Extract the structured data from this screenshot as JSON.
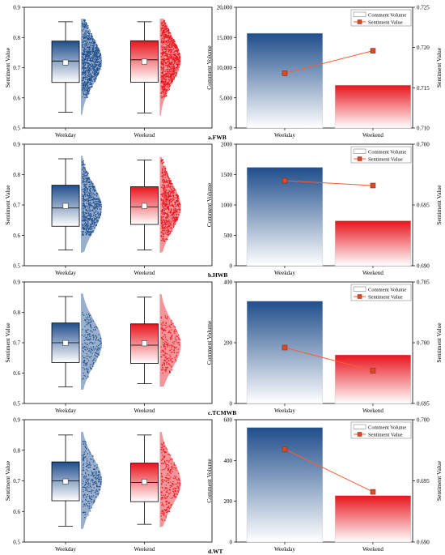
{
  "colors": {
    "weekday": "#1f4e8c",
    "weekend": "#e8141c",
    "line": "#ff5a2e",
    "marker": "#d94a2a",
    "text": "#000000"
  },
  "chart_data": [
    {
      "type": "scatter",
      "variant": "box-raincloud",
      "panel": "a",
      "xlabel": "",
      "ylabel": "Sentiment Value",
      "ylim": [
        0.5,
        0.9
      ],
      "yticks": [
        "0.5",
        "0.6",
        "0.7",
        "0.8",
        "0.9"
      ],
      "categories": [
        "Weekday",
        "Weekend"
      ],
      "boxes": [
        {
          "name": "Weekday",
          "whisker_low": 0.552,
          "q1": 0.651,
          "median": 0.722,
          "mean": 0.717,
          "q3": 0.788,
          "whisker_high": 0.852,
          "points_low": 0.6,
          "points_high": 0.858
        },
        {
          "name": "Weekend",
          "whisker_low": 0.55,
          "q1": 0.652,
          "median": 0.726,
          "mean": 0.72,
          "q3": 0.789,
          "whisker_high": 0.852,
          "points_low": 0.6,
          "points_high": 0.858
        }
      ]
    },
    {
      "type": "bar",
      "variant": "bar-line-dual-axis",
      "panel": "a",
      "label": "a.FWB",
      "categories": [
        "Weekday",
        "Weekend"
      ],
      "ylabel": "Comment Volume",
      "y2label": "Sentiment Value",
      "ylim": [
        0,
        20000
      ],
      "yticks": [
        "0",
        "5,000",
        "10,000",
        "15,000",
        "20,000"
      ],
      "y2lim": [
        0.71,
        0.725
      ],
      "y2ticks": [
        "0.710",
        "0.715",
        "0.720",
        "0.725"
      ],
      "series": [
        {
          "name": "Comment Volume",
          "values": [
            15700,
            7100
          ]
        },
        {
          "name": "Sentiment Value",
          "values": [
            0.7168,
            0.7196
          ]
        }
      ],
      "legend": "top-right"
    },
    {
      "type": "scatter",
      "variant": "box-raincloud",
      "panel": "b",
      "xlabel": "",
      "ylabel": "Sentiment Value",
      "ylim": [
        0.5,
        0.9
      ],
      "yticks": [
        "0.5",
        "0.6",
        "0.7",
        "0.8",
        "0.9"
      ],
      "categories": [
        "Weekday",
        "Weekend"
      ],
      "boxes": [
        {
          "name": "Weekday",
          "whisker_low": 0.552,
          "q1": 0.63,
          "median": 0.69,
          "mean": 0.697,
          "q3": 0.765,
          "whisker_high": 0.852,
          "points_low": 0.6,
          "points_high": 0.858
        },
        {
          "name": "Weekend",
          "whisker_low": 0.552,
          "q1": 0.636,
          "median": 0.694,
          "mean": 0.697,
          "q3": 0.76,
          "whisker_high": 0.848,
          "points_low": 0.58,
          "points_high": 0.852
        }
      ]
    },
    {
      "type": "bar",
      "variant": "bar-line-dual-axis",
      "panel": "b",
      "label": "b.HWB",
      "categories": [
        "Weekday",
        "Weekend"
      ],
      "ylabel": "Comment Volume",
      "y2label": "Sentiment Value",
      "ylim": [
        0,
        2000
      ],
      "yticks": [
        "0",
        "500",
        "1000",
        "1500",
        "2000"
      ],
      "y2lim": [
        0.69,
        0.7
      ],
      "y2ticks": [
        "0.690",
        "0.695",
        "0.700"
      ],
      "series": [
        {
          "name": "Comment Volume",
          "values": [
            1620,
            740
          ]
        },
        {
          "name": "Sentiment Value",
          "values": [
            0.697,
            0.6966
          ]
        }
      ],
      "legend": "top-right"
    },
    {
      "type": "scatter",
      "variant": "box-raincloud",
      "panel": "c",
      "xlabel": "",
      "ylabel": "Sentiment Value",
      "ylim": [
        0.5,
        0.9
      ],
      "yticks": [
        "0.5",
        "0.6",
        "0.7",
        "0.8",
        "0.9"
      ],
      "categories": [
        "Weekday",
        "Weekend"
      ],
      "boxes": [
        {
          "name": "Weekday",
          "whisker_low": 0.555,
          "q1": 0.635,
          "median": 0.7,
          "mean": 0.699,
          "q3": 0.765,
          "whisker_high": 0.852,
          "points_low": 0.58,
          "points_high": 0.8
        },
        {
          "name": "Weekend",
          "whisker_low": 0.565,
          "q1": 0.632,
          "median": 0.692,
          "mean": 0.698,
          "q3": 0.762,
          "whisker_high": 0.85,
          "points_low": 0.6,
          "points_high": 0.79
        }
      ]
    },
    {
      "type": "bar",
      "variant": "bar-line-dual-axis",
      "panel": "c",
      "label": "c.TCMWB",
      "categories": [
        "Weekday",
        "Weekend"
      ],
      "ylabel": "Comment Volume",
      "y2label": "Sentiment Value",
      "ylim": [
        0,
        400
      ],
      "yticks": [
        "0",
        "200",
        "400"
      ],
      "y2lim": [
        0.695,
        0.705
      ],
      "y2ticks": [
        "0.695",
        "0.700",
        "0.705"
      ],
      "series": [
        {
          "name": "Comment Volume",
          "values": [
            337,
            160
          ]
        },
        {
          "name": "Sentiment Value",
          "values": [
            0.6996,
            0.6977
          ]
        }
      ],
      "legend": "top-right"
    },
    {
      "type": "scatter",
      "variant": "box-raincloud",
      "panel": "d",
      "xlabel": "",
      "ylabel": "Sentiment Value",
      "ylim": [
        0.5,
        0.9
      ],
      "yticks": [
        "0.5",
        "0.6",
        "0.7",
        "0.8",
        "0.9"
      ],
      "categories": [
        "Weekday",
        "Weekend"
      ],
      "boxes": [
        {
          "name": "Weekday",
          "whisker_low": 0.552,
          "q1": 0.635,
          "median": 0.7,
          "mean": 0.698,
          "q3": 0.762,
          "whisker_high": 0.85,
          "points_low": 0.58,
          "points_high": 0.84
        },
        {
          "name": "Weekend",
          "whisker_low": 0.558,
          "q1": 0.632,
          "median": 0.695,
          "mean": 0.697,
          "q3": 0.758,
          "whisker_high": 0.85,
          "points_low": 0.57,
          "points_high": 0.84
        }
      ]
    },
    {
      "type": "bar",
      "variant": "bar-line-dual-axis",
      "panel": "d",
      "label": "d.WT",
      "categories": [
        "Weekday",
        "Weekend"
      ],
      "ylabel": "Comment Volume",
      "y2label": "Sentiment Value",
      "ylim": [
        0,
        600
      ],
      "yticks": [
        "0",
        "200",
        "400",
        "600"
      ],
      "y2lim": [
        0.69,
        0.7
      ],
      "y2ticks": [
        "0.690",
        "0.695",
        "0.700"
      ],
      "series": [
        {
          "name": "Comment Volume",
          "values": [
            562,
            228
          ]
        },
        {
          "name": "Sentiment Value",
          "values": [
            0.6976,
            0.6941
          ]
        }
      ],
      "legend": "top-right"
    }
  ]
}
